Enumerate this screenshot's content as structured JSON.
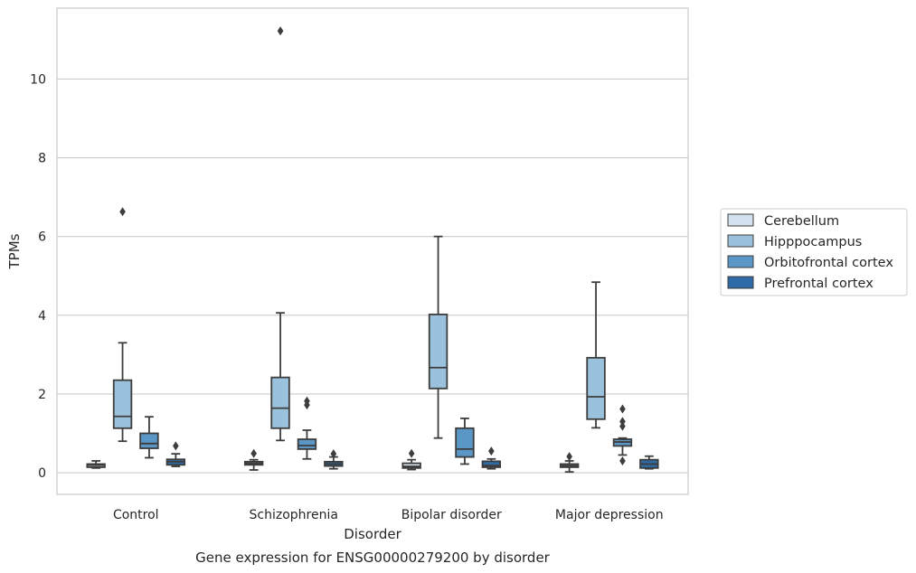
{
  "chart_data": {
    "type": "boxplot",
    "caption": "Gene expression for ENSG00000279200 by disorder",
    "xlabel": "Disorder",
    "ylabel": "TPMs",
    "ylim": [
      -0.55,
      11.8
    ],
    "yticks": [
      0,
      2,
      4,
      6,
      8,
      10
    ],
    "grid": true,
    "legend_position": "right",
    "categories": [
      "Control",
      "Schizophrenia",
      "Bipolar disorder",
      "Major depression"
    ],
    "series": [
      {
        "name": "Cerebellum",
        "color": "#d4e2ef",
        "boxes": [
          {
            "whisker_low": 0.12,
            "q1": 0.14,
            "median": 0.19,
            "q3": 0.22,
            "whisker_high": 0.3,
            "outliers": []
          },
          {
            "whisker_low": 0.07,
            "q1": 0.2,
            "median": 0.24,
            "q3": 0.28,
            "whisker_high": 0.33,
            "outliers": [
              0.49
            ]
          },
          {
            "whisker_low": 0.08,
            "q1": 0.12,
            "median": 0.16,
            "q3": 0.24,
            "whisker_high": 0.33,
            "outliers": [
              0.49
            ]
          },
          {
            "whisker_low": 0.02,
            "q1": 0.14,
            "median": 0.18,
            "q3": 0.22,
            "whisker_high": 0.3,
            "outliers": [
              0.41
            ]
          }
        ]
      },
      {
        "name": "Hipppocampus",
        "color": "#9ac2dc",
        "boxes": [
          {
            "whisker_low": 0.8,
            "q1": 1.13,
            "median": 1.43,
            "q3": 2.35,
            "whisker_high": 3.3,
            "outliers": [
              6.63
            ]
          },
          {
            "whisker_low": 0.82,
            "q1": 1.13,
            "median": 1.64,
            "q3": 2.42,
            "whisker_high": 4.06,
            "outliers": [
              11.22
            ]
          },
          {
            "whisker_low": 0.88,
            "q1": 2.14,
            "median": 2.67,
            "q3": 4.02,
            "whisker_high": 6.0,
            "outliers": []
          },
          {
            "whisker_low": 1.14,
            "q1": 1.36,
            "median": 1.93,
            "q3": 2.92,
            "whisker_high": 4.84,
            "outliers": []
          }
        ]
      },
      {
        "name": "Orbitofrontal cortex",
        "color": "#5a96c6",
        "boxes": [
          {
            "whisker_low": 0.38,
            "q1": 0.62,
            "median": 0.74,
            "q3": 1.0,
            "whisker_high": 1.42,
            "outliers": []
          },
          {
            "whisker_low": 0.35,
            "q1": 0.6,
            "median": 0.69,
            "q3": 0.85,
            "whisker_high": 1.08,
            "outliers": [
              1.72,
              1.82
            ]
          },
          {
            "whisker_low": 0.22,
            "q1": 0.4,
            "median": 0.6,
            "q3": 1.13,
            "whisker_high": 1.38,
            "outliers": []
          },
          {
            "whisker_low": 0.45,
            "q1": 0.68,
            "median": 0.78,
            "q3": 0.85,
            "whisker_high": 0.88,
            "outliers": [
              0.3,
              1.18,
              1.3,
              1.62
            ]
          }
        ]
      },
      {
        "name": "Prefrontal cortex",
        "color": "#2e6aa6",
        "boxes": [
          {
            "whisker_low": 0.16,
            "q1": 0.2,
            "median": 0.28,
            "q3": 0.34,
            "whisker_high": 0.48,
            "outliers": [
              0.68
            ]
          },
          {
            "whisker_low": 0.1,
            "q1": 0.17,
            "median": 0.22,
            "q3": 0.28,
            "whisker_high": 0.4,
            "outliers": [
              0.48
            ]
          },
          {
            "whisker_low": 0.1,
            "q1": 0.14,
            "median": 0.18,
            "q3": 0.29,
            "whisker_high": 0.35,
            "outliers": [
              0.55
            ]
          },
          {
            "whisker_low": 0.1,
            "q1": 0.12,
            "median": 0.22,
            "q3": 0.33,
            "whisker_high": 0.42,
            "outliers": []
          }
        ]
      }
    ]
  }
}
